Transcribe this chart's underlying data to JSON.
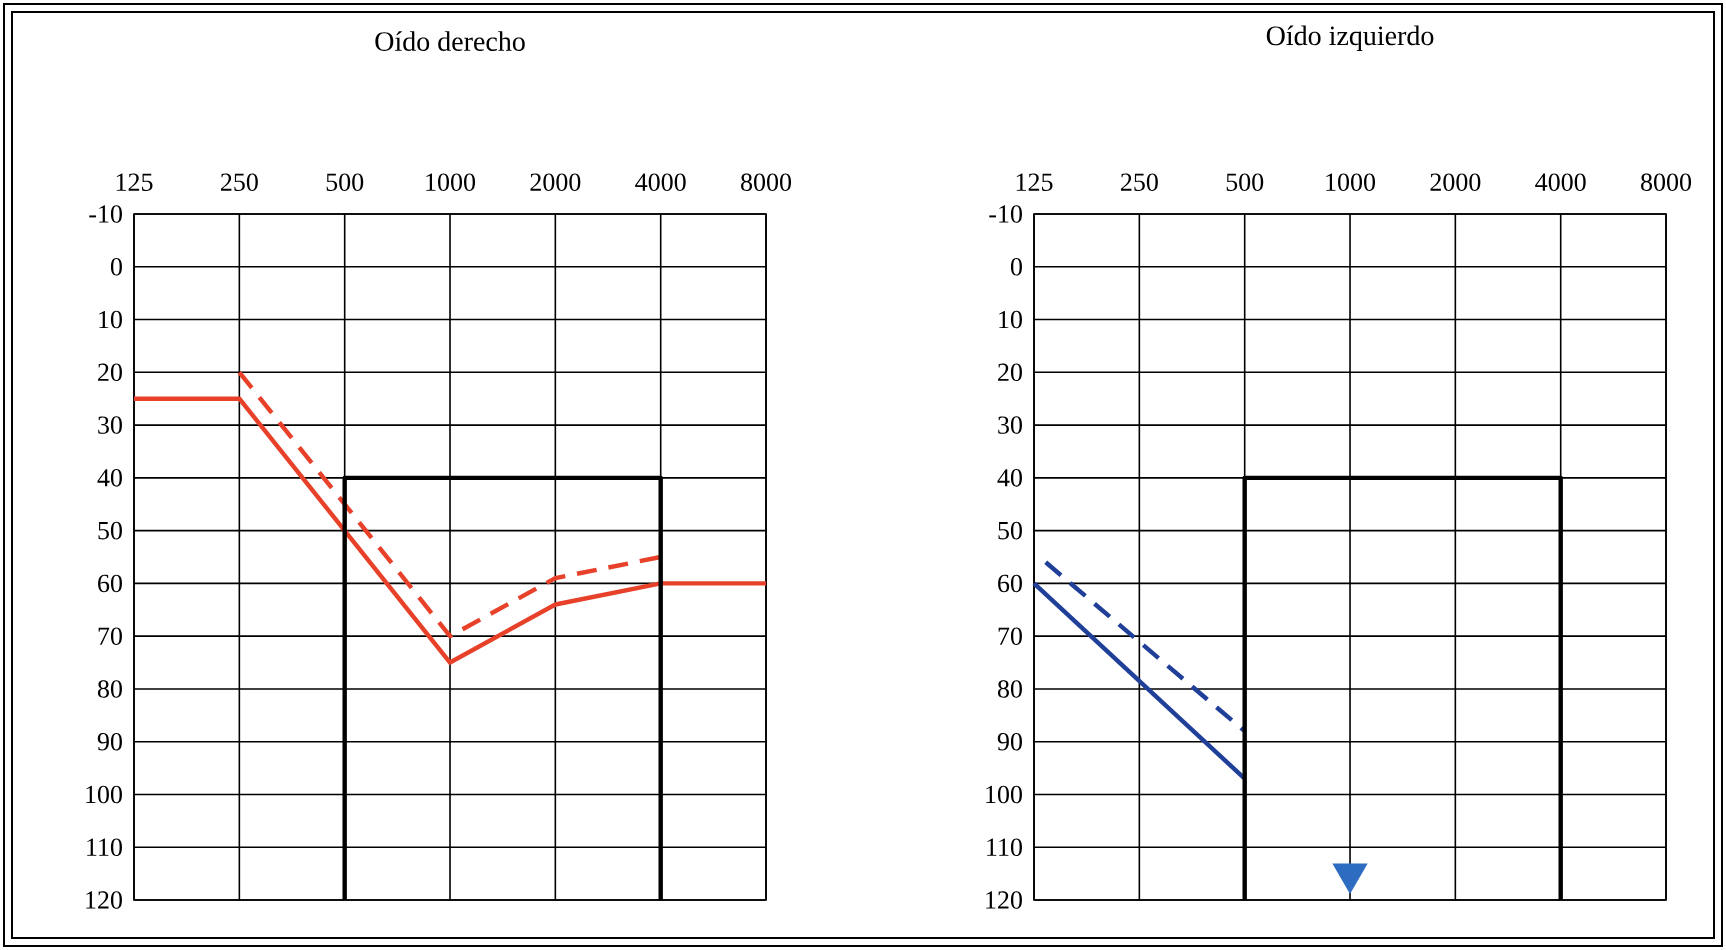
{
  "chart_data": [
    {
      "type": "line",
      "title": "Oído derecho",
      "log": "x",
      "grid": true,
      "xlim": [
        125,
        8000
      ],
      "ylim": [
        120,
        -10
      ],
      "xticks": [
        125,
        250,
        500,
        1000,
        2000,
        4000,
        8000
      ],
      "yticks": [
        -10,
        0,
        10,
        20,
        30,
        40,
        50,
        60,
        70,
        80,
        90,
        100,
        110,
        120
      ],
      "series": [
        {
          "color": "#e8412a",
          "line_style": "solid",
          "x": [
            125,
            250,
            1000,
            2000,
            4000,
            8000
          ],
          "values": [
            25,
            25,
            75,
            64,
            60,
            60
          ]
        },
        {
          "color": "#e8412a",
          "line_style": "dashed",
          "x": [
            250,
            1000,
            2000,
            4000
          ],
          "values": [
            20,
            70,
            59,
            55
          ]
        },
        {
          "color": "#000000",
          "line_style": "solid",
          "x": [
            500,
            500,
            4000,
            4000
          ],
          "values": [
            120,
            40,
            40,
            120
          ]
        }
      ]
    },
    {
      "type": "line",
      "title": "Oído izquierdo",
      "log": "x",
      "grid": true,
      "xlim": [
        125,
        8000
      ],
      "ylim": [
        120,
        -10
      ],
      "xticks": [
        125,
        250,
        500,
        1000,
        2000,
        4000,
        8000
      ],
      "yticks": [
        -10,
        0,
        10,
        20,
        30,
        40,
        50,
        60,
        70,
        80,
        90,
        100,
        110,
        120
      ],
      "series": [
        {
          "color": "#1f3f99",
          "line_style": "solid",
          "x": [
            125,
            500
          ],
          "values": [
            60,
            97
          ]
        },
        {
          "color": "#1f3f99",
          "line_style": "dashed",
          "x": [
            135,
            500
          ],
          "values": [
            56,
            88
          ]
        },
        {
          "color": "#000000",
          "line_style": "solid",
          "x": [
            500,
            500,
            4000,
            4000
          ],
          "values": [
            120,
            40,
            40,
            120
          ]
        },
        {
          "type": "scatter",
          "marker": "triangle",
          "color": "#2d6cc0",
          "x": [
            1000
          ],
          "values": [
            115
          ]
        }
      ]
    }
  ]
}
